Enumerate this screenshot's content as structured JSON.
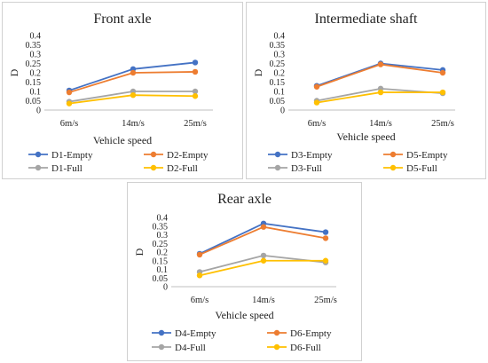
{
  "charts": [
    {
      "chart_data": {
        "type": "line",
        "title": "Front axle",
        "xlabel": "Vehicle speed",
        "ylabel": "D",
        "categories": [
          "6m/s",
          "14m/s",
          "25m/s"
        ],
        "ylim": [
          0,
          0.4
        ],
        "yticks": [
          "0",
          "0.05",
          "0.1",
          "0.15",
          "0.2",
          "0.25",
          "0.3",
          "0.35",
          "0.4"
        ],
        "grid": false,
        "legend_position": "bottom",
        "series": [
          {
            "name": "D1-Empty",
            "color": "#4472C4",
            "values": [
              0.105,
              0.22,
              0.255
            ]
          },
          {
            "name": "D2-Empty",
            "color": "#ED7D31",
            "values": [
              0.095,
              0.2,
              0.205
            ]
          },
          {
            "name": "D1-Full",
            "color": "#A5A5A5",
            "values": [
              0.045,
              0.1,
              0.1
            ]
          },
          {
            "name": "D2-Full",
            "color": "#FFC000",
            "values": [
              0.035,
              0.08,
              0.075
            ]
          }
        ]
      }
    },
    {
      "chart_data": {
        "type": "line",
        "title": "Intermediate shaft",
        "xlabel": "Vehicle speed",
        "ylabel": "D",
        "categories": [
          "6m/s",
          "14m/s",
          "25m/s"
        ],
        "ylim": [
          0,
          0.4
        ],
        "yticks": [
          "0",
          "0.05",
          "0.1",
          "0.15",
          "0.2",
          "0.25",
          "0.3",
          "0.35",
          "0.4"
        ],
        "grid": false,
        "legend_position": "bottom",
        "series": [
          {
            "name": "D3-Empty",
            "color": "#4472C4",
            "values": [
              0.13,
              0.25,
              0.215
            ]
          },
          {
            "name": "D5-Empty",
            "color": "#ED7D31",
            "values": [
              0.125,
              0.245,
              0.2
            ]
          },
          {
            "name": "D3-Full",
            "color": "#A5A5A5",
            "values": [
              0.05,
              0.115,
              0.09
            ]
          },
          {
            "name": "D5-Full",
            "color": "#FFC000",
            "values": [
              0.04,
              0.095,
              0.095
            ]
          }
        ]
      }
    },
    {
      "chart_data": {
        "type": "line",
        "title": "Rear axle",
        "xlabel": "Vehicle speed",
        "ylabel": "D",
        "categories": [
          "6m/s",
          "14m/s",
          "25m/s"
        ],
        "ylim": [
          0,
          0.4
        ],
        "yticks": [
          "0",
          "0.05",
          "0.1",
          "0.15",
          "0.2",
          "0.25",
          "0.3",
          "0.35",
          "0.4"
        ],
        "grid": false,
        "legend_position": "bottom",
        "series": [
          {
            "name": "D4-Empty",
            "color": "#4472C4",
            "values": [
              0.19,
              0.365,
              0.315
            ]
          },
          {
            "name": "D6-Empty",
            "color": "#ED7D31",
            "values": [
              0.185,
              0.345,
              0.28
            ]
          },
          {
            "name": "D4-Full",
            "color": "#A5A5A5",
            "values": [
              0.085,
              0.18,
              0.14
            ]
          },
          {
            "name": "D6-Full",
            "color": "#FFC000",
            "values": [
              0.065,
              0.15,
              0.15
            ]
          }
        ]
      }
    }
  ]
}
